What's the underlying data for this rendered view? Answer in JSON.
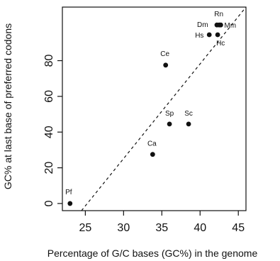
{
  "chart_data": {
    "type": "scatter",
    "xlabel": "Percentage of G/C bases (GC%) in the genome",
    "ylabel": "GC% at last base of preferred codons",
    "xlim": [
      22,
      46
    ],
    "ylim": [
      -4,
      110
    ],
    "x_ticks": [
      25,
      30,
      35,
      40,
      45
    ],
    "y_ticks": [
      0,
      20,
      40,
      60,
      80
    ],
    "grid": false,
    "legend": "none",
    "points": [
      {
        "label": "Pf",
        "x": 23.0,
        "y": 0
      },
      {
        "label": "Ca",
        "x": 33.8,
        "y": 27.5
      },
      {
        "label": "Sp",
        "x": 36.0,
        "y": 44.5
      },
      {
        "label": "Sc",
        "x": 38.5,
        "y": 44.5
      },
      {
        "label": "Ce",
        "x": 35.5,
        "y": 77.5
      },
      {
        "label": "Hs",
        "x": 41.2,
        "y": 94.5
      },
      {
        "label": "Hc",
        "x": 42.3,
        "y": 94.5
      },
      {
        "label": "Dm",
        "x": 42.2,
        "y": 100
      },
      {
        "label": "Rn",
        "x": 42.5,
        "y": 100
      },
      {
        "label": "Mm",
        "x": 42.7,
        "y": 100
      }
    ],
    "reference_line": {
      "style": "dashed",
      "from": [
        24.5,
        -4
      ],
      "to": [
        46,
        110
      ]
    }
  }
}
